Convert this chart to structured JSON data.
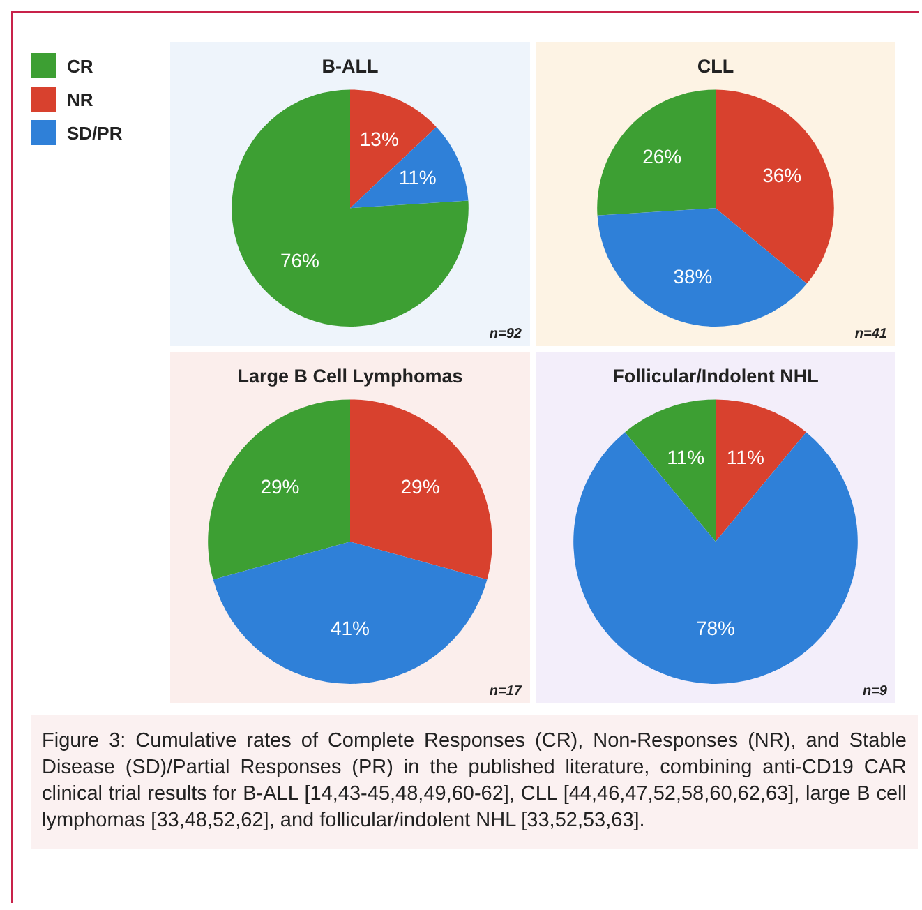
{
  "chart_data": [
    {
      "type": "pie",
      "title": "B-ALL",
      "categories": [
        "CR",
        "NR",
        "SD/PR"
      ],
      "values": [
        76,
        13,
        11
      ],
      "colors": [
        "#3d9f33",
        "#d8412e",
        "#2f80d8"
      ],
      "value_labels": [
        "76%",
        "13%",
        "11%"
      ],
      "legend": "left",
      "annotations": [
        "n=92"
      ]
    },
    {
      "type": "pie",
      "title": "CLL",
      "categories": [
        null,
        null,
        null
      ],
      "values": [
        26,
        36,
        38
      ],
      "colors": [
        "#3d9f33",
        "#d8412e",
        "#2f80d8"
      ],
      "value_labels": [
        "26%",
        "36%",
        "38%"
      ],
      "annotations": [
        "n=41"
      ]
    },
    {
      "type": "pie",
      "title": "Large B Cell Lymphomas",
      "categories": [
        null,
        null,
        null
      ],
      "values": [
        29,
        29,
        41
      ],
      "colors": [
        "#3d9f33",
        "#d8412e",
        "#2f80d8"
      ],
      "value_labels": [
        "29%",
        "29%",
        "41%"
      ],
      "annotations": [
        "n=17"
      ]
    },
    {
      "type": "pie",
      "title": "Follicular/Indolent NHL",
      "categories": [
        null,
        null,
        null
      ],
      "values": [
        11,
        11,
        78
      ],
      "colors": [
        "#3d9f33",
        "#d8412e",
        "#2f80d8"
      ],
      "value_labels": [
        "11%",
        "11%",
        "78%"
      ],
      "annotations": [
        "n=9",
        "Figure 3: Cumulative rates of Complete Responses (CR), Non-Responses (NR), and Stable Disease (SD)/Partial Responses (PR) in the published literature, combining anti-CD19 CAR clinical trial results for B-ALL [14,43-45,48,49,60-62], CLL [44,46,47,52,58,60,62,63], large B cell lymphomas [33,48,52,62], and follicular/indolent NHL [33,52,53,63]."
      ]
    }
  ]
}
